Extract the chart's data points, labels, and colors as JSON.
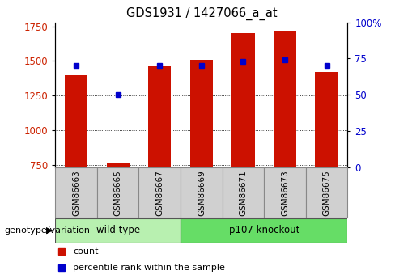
{
  "title": "GDS1931 / 1427066_a_at",
  "samples": [
    "GSM86663",
    "GSM86665",
    "GSM86667",
    "GSM86669",
    "GSM86671",
    "GSM86673",
    "GSM86675"
  ],
  "red_values": [
    1400,
    760,
    1470,
    1510,
    1700,
    1720,
    1420
  ],
  "blue_percentile": [
    70,
    50,
    70,
    70,
    73,
    74,
    70
  ],
  "ylim_left": [
    730,
    1780
  ],
  "ylim_right": [
    0,
    100
  ],
  "yticks_left": [
    750,
    1000,
    1250,
    1500,
    1750
  ],
  "yticks_right": [
    0,
    25,
    50,
    75,
    100
  ],
  "ytick_labels_right": [
    "0",
    "25",
    "50",
    "75",
    "100%"
  ],
  "groups": [
    {
      "label": "wild type",
      "indices": [
        0,
        1,
        2
      ],
      "color": "#b8f0b0"
    },
    {
      "label": "p107 knockout",
      "indices": [
        3,
        4,
        5,
        6
      ],
      "color": "#66dd66"
    }
  ],
  "group_label": "genotype/variation",
  "bar_color": "#cc1100",
  "dot_color": "#0000cc",
  "bar_width": 0.55,
  "tick_label_color_left": "#cc2200",
  "tick_label_color_right": "#0000cc",
  "xtick_bg": "#d0d0d0",
  "grid_color": "#000000",
  "legend_labels": [
    "count",
    "percentile rank within the sample"
  ]
}
